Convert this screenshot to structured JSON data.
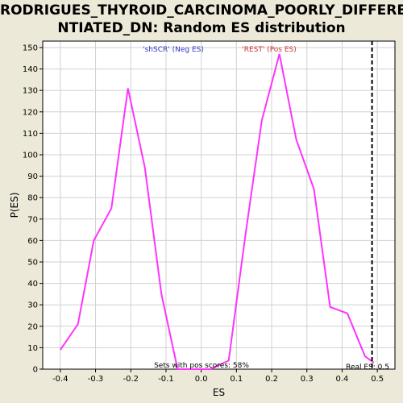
{
  "title_line1": "RODRIGUES_THYROID_CARCINOMA_POORLY_DIFFERE",
  "title_line2": "NTIATED_DN: Random ES distribution",
  "chart_data": {
    "type": "line",
    "xlabel": "ES",
    "ylabel": "P(ES)",
    "xlim": [
      -0.45,
      0.55
    ],
    "ylim": [
      0,
      153
    ],
    "xticks": [
      -0.4,
      -0.3,
      -0.2,
      -0.1,
      0.0,
      0.1,
      0.2,
      0.3,
      0.4,
      0.5
    ],
    "xtick_labels": [
      "-0.4",
      "-0.3",
      "-0.2",
      "-0.1",
      "0.0",
      "0.1",
      "0.2",
      "0.3",
      "0.4",
      "0.5"
    ],
    "yticks": [
      0,
      10,
      20,
      30,
      40,
      50,
      60,
      70,
      80,
      90,
      100,
      110,
      120,
      130,
      140,
      150
    ],
    "series": [
      {
        "color": "#ff33ff",
        "x": [
          -0.4,
          -0.35,
          -0.305,
          -0.255,
          -0.208,
          -0.16,
          -0.113,
          -0.067,
          -0.02,
          0.025,
          0.078,
          0.125,
          0.172,
          0.222,
          0.27,
          0.32,
          0.366,
          0.415,
          0.465,
          0.49
        ],
        "y": [
          9,
          21,
          60,
          75,
          131,
          94,
          35,
          0,
          0,
          0,
          4,
          62,
          116,
          147,
          107,
          84,
          29,
          26,
          6,
          3
        ]
      }
    ],
    "real_es": 0.485,
    "grid": true,
    "annotations": {
      "neg": "'shSCR' (Neg ES)",
      "pos": "'REST' (Pos ES)",
      "sets": "Sets with pos scores: 58%",
      "real": "Real ES: 0.5"
    },
    "colors": {
      "neg": "#3333cc",
      "pos": "#cc3333",
      "line": "#ff33ff"
    }
  }
}
